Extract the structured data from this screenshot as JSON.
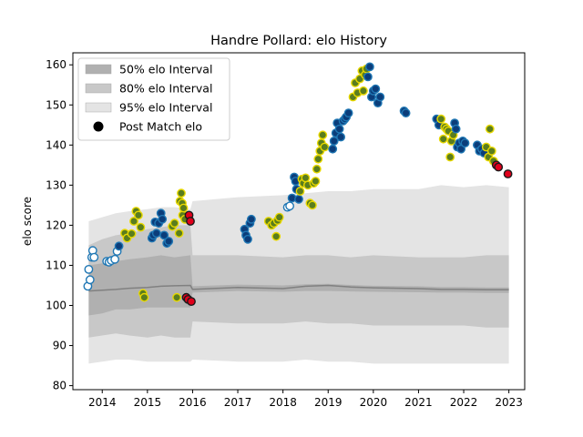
{
  "chart_data": {
    "type": "scatter",
    "title": "Handre Pollard: elo History",
    "xlabel": "",
    "ylabel": "elo score",
    "xlim": [
      2013.35,
      2023.35
    ],
    "ylim": [
      79,
      163
    ],
    "xticks": [
      "2014",
      "2015",
      "2016",
      "2017",
      "2018",
      "2019",
      "2020",
      "2021",
      "2022",
      "2023"
    ],
    "yticks": [
      "80",
      "90",
      "100",
      "110",
      "120",
      "130",
      "140",
      "150",
      "160"
    ],
    "grid": false,
    "legend_position": "top-left",
    "legend": [
      {
        "label": "50% elo Interval",
        "kind": "band",
        "color": "#b0b0b0"
      },
      {
        "label": "80% elo Interval",
        "kind": "band",
        "color": "#c8c8c8"
      },
      {
        "label": "95% elo Interval",
        "kind": "band",
        "color": "#e4e4e4"
      },
      {
        "label": "Post Match elo",
        "kind": "dot",
        "color": "#000000"
      }
    ],
    "colors": {
      "band_50": "#b0b0b0",
      "band_80": "#c8c8c8",
      "band_95": "#e4e4e4",
      "median_line": "#808080",
      "edge_blue": "#1f77b4",
      "face_white": "#ffffff",
      "face_navy": "#0b3d7a",
      "face_olive": "#5a7d1e",
      "face_red": "#e0001b",
      "edge_yellow": "#e8d800",
      "edge_dark": "#1a1a1a"
    },
    "bands": {
      "x": [
        2013.7,
        2014.0,
        2014.3,
        2014.6,
        2015.0,
        2015.3,
        2015.6,
        2015.95,
        2016.0,
        2017.0,
        2018.0,
        2018.5,
        2019.0,
        2019.5,
        2020.0,
        2021.0,
        2021.5,
        2022.0,
        2022.5,
        2023.0
      ],
      "median": [
        103.6,
        103.8,
        104.0,
        104.3,
        104.5,
        104.8,
        104.9,
        105.0,
        104.0,
        104.5,
        104.2,
        104.8,
        105.0,
        104.6,
        104.4,
        104.2,
        104.0,
        104.0,
        103.9,
        103.9
      ],
      "p50_low": [
        97.5,
        98.0,
        99.0,
        99.0,
        99.5,
        99.5,
        99.5,
        99.5,
        103.2,
        103.6,
        103.4,
        103.6,
        103.6,
        103.5,
        103.4,
        103.3,
        103.2,
        103.2,
        103.1,
        103.1
      ],
      "p50_high": [
        110.0,
        110.5,
        111.0,
        111.5,
        112.0,
        112.5,
        112.0,
        112.5,
        104.8,
        105.2,
        105.0,
        105.3,
        105.4,
        105.1,
        104.9,
        104.8,
        104.6,
        104.6,
        104.5,
        104.5
      ],
      "p80_low": [
        92.0,
        92.5,
        93.0,
        92.5,
        92.0,
        92.5,
        92.0,
        92.0,
        96.0,
        95.5,
        95.5,
        96.0,
        95.5,
        95.5,
        95.0,
        95.0,
        95.0,
        95.0,
        94.5,
        94.5
      ],
      "p80_high": [
        115.0,
        116.5,
        117.5,
        118.0,
        119.0,
        119.5,
        120.0,
        120.0,
        112.5,
        112.5,
        112.0,
        112.5,
        112.5,
        112.0,
        112.5,
        112.0,
        112.0,
        112.0,
        112.5,
        112.5
      ],
      "p95_low": [
        85.5,
        86.0,
        86.5,
        86.5,
        86.0,
        86.0,
        86.0,
        86.0,
        86.5,
        86.0,
        86.0,
        86.5,
        86.0,
        86.0,
        85.5,
        85.5,
        85.5,
        85.5,
        85.5,
        85.5
      ],
      "p95_high": [
        121.0,
        122.0,
        123.0,
        123.5,
        124.0,
        124.5,
        124.5,
        124.0,
        126.0,
        127.0,
        127.5,
        128.0,
        128.5,
        128.5,
        129.0,
        129.0,
        130.0,
        129.5,
        130.0,
        129.5
      ]
    },
    "points": [
      {
        "x": 2013.68,
        "y": 104.8,
        "face": "face_white",
        "edge": "edge_blue"
      },
      {
        "x": 2013.7,
        "y": 109.0,
        "face": "face_white",
        "edge": "edge_blue"
      },
      {
        "x": 2013.73,
        "y": 106.4,
        "face": "face_white",
        "edge": "edge_blue"
      },
      {
        "x": 2013.77,
        "y": 112.0,
        "face": "face_white",
        "edge": "edge_blue"
      },
      {
        "x": 2013.79,
        "y": 113.7,
        "face": "face_white",
        "edge": "edge_blue"
      },
      {
        "x": 2013.82,
        "y": 112.0,
        "face": "face_white",
        "edge": "edge_blue"
      },
      {
        "x": 2014.1,
        "y": 111.0,
        "face": "face_white",
        "edge": "edge_blue"
      },
      {
        "x": 2014.15,
        "y": 110.8,
        "face": "face_white",
        "edge": "edge_blue"
      },
      {
        "x": 2014.2,
        "y": 111.2,
        "face": "face_white",
        "edge": "edge_blue"
      },
      {
        "x": 2014.28,
        "y": 111.5,
        "face": "face_white",
        "edge": "edge_blue"
      },
      {
        "x": 2014.33,
        "y": 113.5,
        "face": "face_white",
        "edge": "edge_blue"
      },
      {
        "x": 2014.37,
        "y": 114.8,
        "face": "face_navy",
        "edge": "edge_blue"
      },
      {
        "x": 2014.5,
        "y": 118.0,
        "face": "face_olive",
        "edge": "edge_yellow"
      },
      {
        "x": 2014.55,
        "y": 116.8,
        "face": "face_olive",
        "edge": "edge_yellow"
      },
      {
        "x": 2014.65,
        "y": 117.9,
        "face": "face_olive",
        "edge": "edge_yellow"
      },
      {
        "x": 2014.7,
        "y": 121.0,
        "face": "face_olive",
        "edge": "edge_yellow"
      },
      {
        "x": 2014.75,
        "y": 123.5,
        "face": "face_olive",
        "edge": "edge_yellow"
      },
      {
        "x": 2014.8,
        "y": 122.5,
        "face": "face_olive",
        "edge": "edge_yellow"
      },
      {
        "x": 2014.85,
        "y": 119.5,
        "face": "face_olive",
        "edge": "edge_yellow"
      },
      {
        "x": 2014.9,
        "y": 103.0,
        "face": "face_olive",
        "edge": "edge_yellow"
      },
      {
        "x": 2014.93,
        "y": 102.0,
        "face": "face_olive",
        "edge": "edge_yellow"
      },
      {
        "x": 2015.1,
        "y": 116.8,
        "face": "face_navy",
        "edge": "edge_blue"
      },
      {
        "x": 2015.13,
        "y": 117.5,
        "face": "face_navy",
        "edge": "edge_blue"
      },
      {
        "x": 2015.17,
        "y": 120.8,
        "face": "face_navy",
        "edge": "edge_blue"
      },
      {
        "x": 2015.2,
        "y": 118.0,
        "face": "face_navy",
        "edge": "edge_blue"
      },
      {
        "x": 2015.25,
        "y": 120.5,
        "face": "face_navy",
        "edge": "edge_blue"
      },
      {
        "x": 2015.3,
        "y": 123.0,
        "face": "face_navy",
        "edge": "edge_blue"
      },
      {
        "x": 2015.33,
        "y": 121.5,
        "face": "face_navy",
        "edge": "edge_blue"
      },
      {
        "x": 2015.37,
        "y": 117.5,
        "face": "face_navy",
        "edge": "edge_blue"
      },
      {
        "x": 2015.43,
        "y": 115.5,
        "face": "face_navy",
        "edge": "edge_blue"
      },
      {
        "x": 2015.47,
        "y": 116.0,
        "face": "face_navy",
        "edge": "edge_blue"
      },
      {
        "x": 2015.55,
        "y": 119.7,
        "face": "face_olive",
        "edge": "edge_yellow"
      },
      {
        "x": 2015.6,
        "y": 120.5,
        "face": "face_olive",
        "edge": "edge_yellow"
      },
      {
        "x": 2015.65,
        "y": 102.0,
        "face": "face_olive",
        "edge": "edge_yellow"
      },
      {
        "x": 2015.7,
        "y": 118.0,
        "face": "face_olive",
        "edge": "edge_yellow"
      },
      {
        "x": 2015.72,
        "y": 126.0,
        "face": "face_olive",
        "edge": "edge_yellow"
      },
      {
        "x": 2015.75,
        "y": 128.0,
        "face": "face_olive",
        "edge": "edge_yellow"
      },
      {
        "x": 2015.77,
        "y": 125.5,
        "face": "face_olive",
        "edge": "edge_yellow"
      },
      {
        "x": 2015.78,
        "y": 122.5,
        "face": "face_olive",
        "edge": "edge_yellow"
      },
      {
        "x": 2015.8,
        "y": 124.3,
        "face": "face_olive",
        "edge": "edge_yellow"
      },
      {
        "x": 2015.83,
        "y": 121.5,
        "face": "face_olive",
        "edge": "edge_yellow"
      },
      {
        "x": 2015.86,
        "y": 102.0,
        "face": "face_red",
        "edge": "edge_dark"
      },
      {
        "x": 2015.9,
        "y": 101.5,
        "face": "face_red",
        "edge": "edge_dark"
      },
      {
        "x": 2015.92,
        "y": 122.5,
        "face": "face_red",
        "edge": "edge_dark"
      },
      {
        "x": 2015.95,
        "y": 121.0,
        "face": "face_red",
        "edge": "edge_dark"
      },
      {
        "x": 2015.97,
        "y": 101.0,
        "face": "face_red",
        "edge": "edge_dark"
      },
      {
        "x": 2017.15,
        "y": 119.0,
        "face": "face_navy",
        "edge": "edge_blue"
      },
      {
        "x": 2017.18,
        "y": 117.5,
        "face": "face_navy",
        "edge": "edge_blue"
      },
      {
        "x": 2017.22,
        "y": 116.5,
        "face": "face_navy",
        "edge": "edge_blue"
      },
      {
        "x": 2017.27,
        "y": 120.5,
        "face": "face_navy",
        "edge": "edge_blue"
      },
      {
        "x": 2017.3,
        "y": 121.5,
        "face": "face_navy",
        "edge": "edge_blue"
      },
      {
        "x": 2017.68,
        "y": 121.0,
        "face": "face_olive",
        "edge": "edge_yellow"
      },
      {
        "x": 2017.75,
        "y": 120.0,
        "face": "face_olive",
        "edge": "edge_yellow"
      },
      {
        "x": 2017.8,
        "y": 120.5,
        "face": "face_olive",
        "edge": "edge_yellow"
      },
      {
        "x": 2017.85,
        "y": 117.2,
        "face": "face_olive",
        "edge": "edge_yellow"
      },
      {
        "x": 2017.88,
        "y": 121.2,
        "face": "face_olive",
        "edge": "edge_yellow"
      },
      {
        "x": 2017.92,
        "y": 122.0,
        "face": "face_olive",
        "edge": "edge_yellow"
      },
      {
        "x": 2018.1,
        "y": 124.5,
        "face": "face_white",
        "edge": "edge_blue"
      },
      {
        "x": 2018.15,
        "y": 124.8,
        "face": "face_white",
        "edge": "edge_blue"
      },
      {
        "x": 2018.2,
        "y": 126.8,
        "face": "face_navy",
        "edge": "edge_blue"
      },
      {
        "x": 2018.25,
        "y": 132.0,
        "face": "face_navy",
        "edge": "edge_blue"
      },
      {
        "x": 2018.28,
        "y": 131.0,
        "face": "face_navy",
        "edge": "edge_blue"
      },
      {
        "x": 2018.3,
        "y": 129.0,
        "face": "face_navy",
        "edge": "edge_blue"
      },
      {
        "x": 2018.35,
        "y": 126.5,
        "face": "face_navy",
        "edge": "edge_blue"
      },
      {
        "x": 2018.38,
        "y": 128.5,
        "face": "face_olive",
        "edge": "edge_yellow"
      },
      {
        "x": 2018.42,
        "y": 131.5,
        "face": "face_olive",
        "edge": "edge_yellow"
      },
      {
        "x": 2018.45,
        "y": 130.5,
        "face": "face_olive",
        "edge": "edge_yellow"
      },
      {
        "x": 2018.5,
        "y": 131.8,
        "face": "face_olive",
        "edge": "edge_yellow"
      },
      {
        "x": 2018.55,
        "y": 130.0,
        "face": "face_olive",
        "edge": "edge_yellow"
      },
      {
        "x": 2018.6,
        "y": 125.5,
        "face": "face_olive",
        "edge": "edge_yellow"
      },
      {
        "x": 2018.65,
        "y": 125.0,
        "face": "face_olive",
        "edge": "edge_yellow"
      },
      {
        "x": 2018.68,
        "y": 130.5,
        "face": "face_olive",
        "edge": "edge_yellow"
      },
      {
        "x": 2018.72,
        "y": 131.0,
        "face": "face_olive",
        "edge": "edge_yellow"
      },
      {
        "x": 2018.75,
        "y": 134.0,
        "face": "face_olive",
        "edge": "edge_yellow"
      },
      {
        "x": 2018.78,
        "y": 136.5,
        "face": "face_olive",
        "edge": "edge_yellow"
      },
      {
        "x": 2018.82,
        "y": 138.5,
        "face": "face_olive",
        "edge": "edge_yellow"
      },
      {
        "x": 2018.85,
        "y": 140.5,
        "face": "face_olive",
        "edge": "edge_yellow"
      },
      {
        "x": 2018.88,
        "y": 142.5,
        "face": "face_olive",
        "edge": "edge_yellow"
      },
      {
        "x": 2018.92,
        "y": 139.5,
        "face": "face_olive",
        "edge": "edge_yellow"
      },
      {
        "x": 2019.1,
        "y": 139.0,
        "face": "face_navy",
        "edge": "edge_blue"
      },
      {
        "x": 2019.13,
        "y": 141.0,
        "face": "face_navy",
        "edge": "edge_blue"
      },
      {
        "x": 2019.17,
        "y": 143.0,
        "face": "face_navy",
        "edge": "edge_blue"
      },
      {
        "x": 2019.2,
        "y": 145.5,
        "face": "face_navy",
        "edge": "edge_blue"
      },
      {
        "x": 2019.25,
        "y": 144.0,
        "face": "face_navy",
        "edge": "edge_blue"
      },
      {
        "x": 2019.28,
        "y": 142.0,
        "face": "face_navy",
        "edge": "edge_blue"
      },
      {
        "x": 2019.33,
        "y": 146.0,
        "face": "face_navy",
        "edge": "edge_blue"
      },
      {
        "x": 2019.37,
        "y": 146.5,
        "face": "face_navy",
        "edge": "edge_blue"
      },
      {
        "x": 2019.4,
        "y": 147.0,
        "face": "face_navy",
        "edge": "edge_blue"
      },
      {
        "x": 2019.45,
        "y": 148.0,
        "face": "face_navy",
        "edge": "edge_blue"
      },
      {
        "x": 2019.55,
        "y": 152.0,
        "face": "face_olive",
        "edge": "edge_yellow"
      },
      {
        "x": 2019.6,
        "y": 155.5,
        "face": "face_olive",
        "edge": "edge_yellow"
      },
      {
        "x": 2019.65,
        "y": 153.0,
        "face": "face_olive",
        "edge": "edge_yellow"
      },
      {
        "x": 2019.7,
        "y": 156.5,
        "face": "face_olive",
        "edge": "edge_yellow"
      },
      {
        "x": 2019.75,
        "y": 158.5,
        "face": "face_olive",
        "edge": "edge_yellow"
      },
      {
        "x": 2019.78,
        "y": 153.5,
        "face": "face_olive",
        "edge": "edge_yellow"
      },
      {
        "x": 2019.82,
        "y": 157.5,
        "face": "face_olive",
        "edge": "edge_yellow"
      },
      {
        "x": 2019.85,
        "y": 159.0,
        "face": "face_olive",
        "edge": "edge_yellow"
      },
      {
        "x": 2019.88,
        "y": 157.0,
        "face": "face_navy",
        "edge": "edge_blue"
      },
      {
        "x": 2019.92,
        "y": 159.5,
        "face": "face_navy",
        "edge": "edge_blue"
      },
      {
        "x": 2019.96,
        "y": 152.0,
        "face": "face_navy",
        "edge": "edge_blue"
      },
      {
        "x": 2020.0,
        "y": 153.5,
        "face": "face_navy",
        "edge": "edge_blue"
      },
      {
        "x": 2020.05,
        "y": 154.0,
        "face": "face_navy",
        "edge": "edge_blue"
      },
      {
        "x": 2020.1,
        "y": 150.5,
        "face": "face_navy",
        "edge": "edge_blue"
      },
      {
        "x": 2020.15,
        "y": 152.0,
        "face": "face_navy",
        "edge": "edge_blue"
      },
      {
        "x": 2020.68,
        "y": 148.5,
        "face": "face_navy",
        "edge": "edge_blue"
      },
      {
        "x": 2020.72,
        "y": 148.0,
        "face": "face_navy",
        "edge": "edge_blue"
      },
      {
        "x": 2021.4,
        "y": 146.5,
        "face": "face_navy",
        "edge": "edge_blue"
      },
      {
        "x": 2021.45,
        "y": 145.0,
        "face": "face_navy",
        "edge": "edge_blue"
      },
      {
        "x": 2021.5,
        "y": 146.5,
        "face": "face_olive",
        "edge": "edge_yellow"
      },
      {
        "x": 2021.55,
        "y": 141.5,
        "face": "face_olive",
        "edge": "edge_yellow"
      },
      {
        "x": 2021.58,
        "y": 144.5,
        "face": "face_olive",
        "edge": "edge_yellow"
      },
      {
        "x": 2021.62,
        "y": 144.0,
        "face": "face_olive",
        "edge": "edge_yellow"
      },
      {
        "x": 2021.66,
        "y": 143.5,
        "face": "face_olive",
        "edge": "edge_yellow"
      },
      {
        "x": 2021.7,
        "y": 137.0,
        "face": "face_olive",
        "edge": "edge_yellow"
      },
      {
        "x": 2021.73,
        "y": 141.0,
        "face": "face_olive",
        "edge": "edge_yellow"
      },
      {
        "x": 2021.77,
        "y": 142.5,
        "face": "face_olive",
        "edge": "edge_yellow"
      },
      {
        "x": 2021.8,
        "y": 145.5,
        "face": "face_navy",
        "edge": "edge_blue"
      },
      {
        "x": 2021.83,
        "y": 144.0,
        "face": "face_navy",
        "edge": "edge_blue"
      },
      {
        "x": 2021.86,
        "y": 139.5,
        "face": "face_navy",
        "edge": "edge_blue"
      },
      {
        "x": 2021.9,
        "y": 140.5,
        "face": "face_navy",
        "edge": "edge_blue"
      },
      {
        "x": 2021.94,
        "y": 139.0,
        "face": "face_navy",
        "edge": "edge_blue"
      },
      {
        "x": 2021.98,
        "y": 141.0,
        "face": "face_navy",
        "edge": "edge_blue"
      },
      {
        "x": 2022.03,
        "y": 140.5,
        "face": "face_navy",
        "edge": "edge_blue"
      },
      {
        "x": 2022.3,
        "y": 140.0,
        "face": "face_navy",
        "edge": "edge_blue"
      },
      {
        "x": 2022.35,
        "y": 138.5,
        "face": "face_navy",
        "edge": "edge_blue"
      },
      {
        "x": 2022.4,
        "y": 139.0,
        "face": "face_navy",
        "edge": "edge_blue"
      },
      {
        "x": 2022.45,
        "y": 138.0,
        "face": "face_navy",
        "edge": "edge_blue"
      },
      {
        "x": 2022.5,
        "y": 139.5,
        "face": "face_olive",
        "edge": "edge_yellow"
      },
      {
        "x": 2022.55,
        "y": 137.0,
        "face": "face_olive",
        "edge": "edge_yellow"
      },
      {
        "x": 2022.58,
        "y": 144.0,
        "face": "face_olive",
        "edge": "edge_yellow"
      },
      {
        "x": 2022.62,
        "y": 138.5,
        "face": "face_olive",
        "edge": "edge_yellow"
      },
      {
        "x": 2022.66,
        "y": 136.0,
        "face": "face_olive",
        "edge": "edge_yellow"
      },
      {
        "x": 2022.72,
        "y": 135.0,
        "face": "face_red",
        "edge": "edge_dark"
      },
      {
        "x": 2022.77,
        "y": 134.5,
        "face": "face_red",
        "edge": "edge_dark"
      },
      {
        "x": 2022.98,
        "y": 132.8,
        "face": "face_red",
        "edge": "edge_dark"
      }
    ]
  }
}
